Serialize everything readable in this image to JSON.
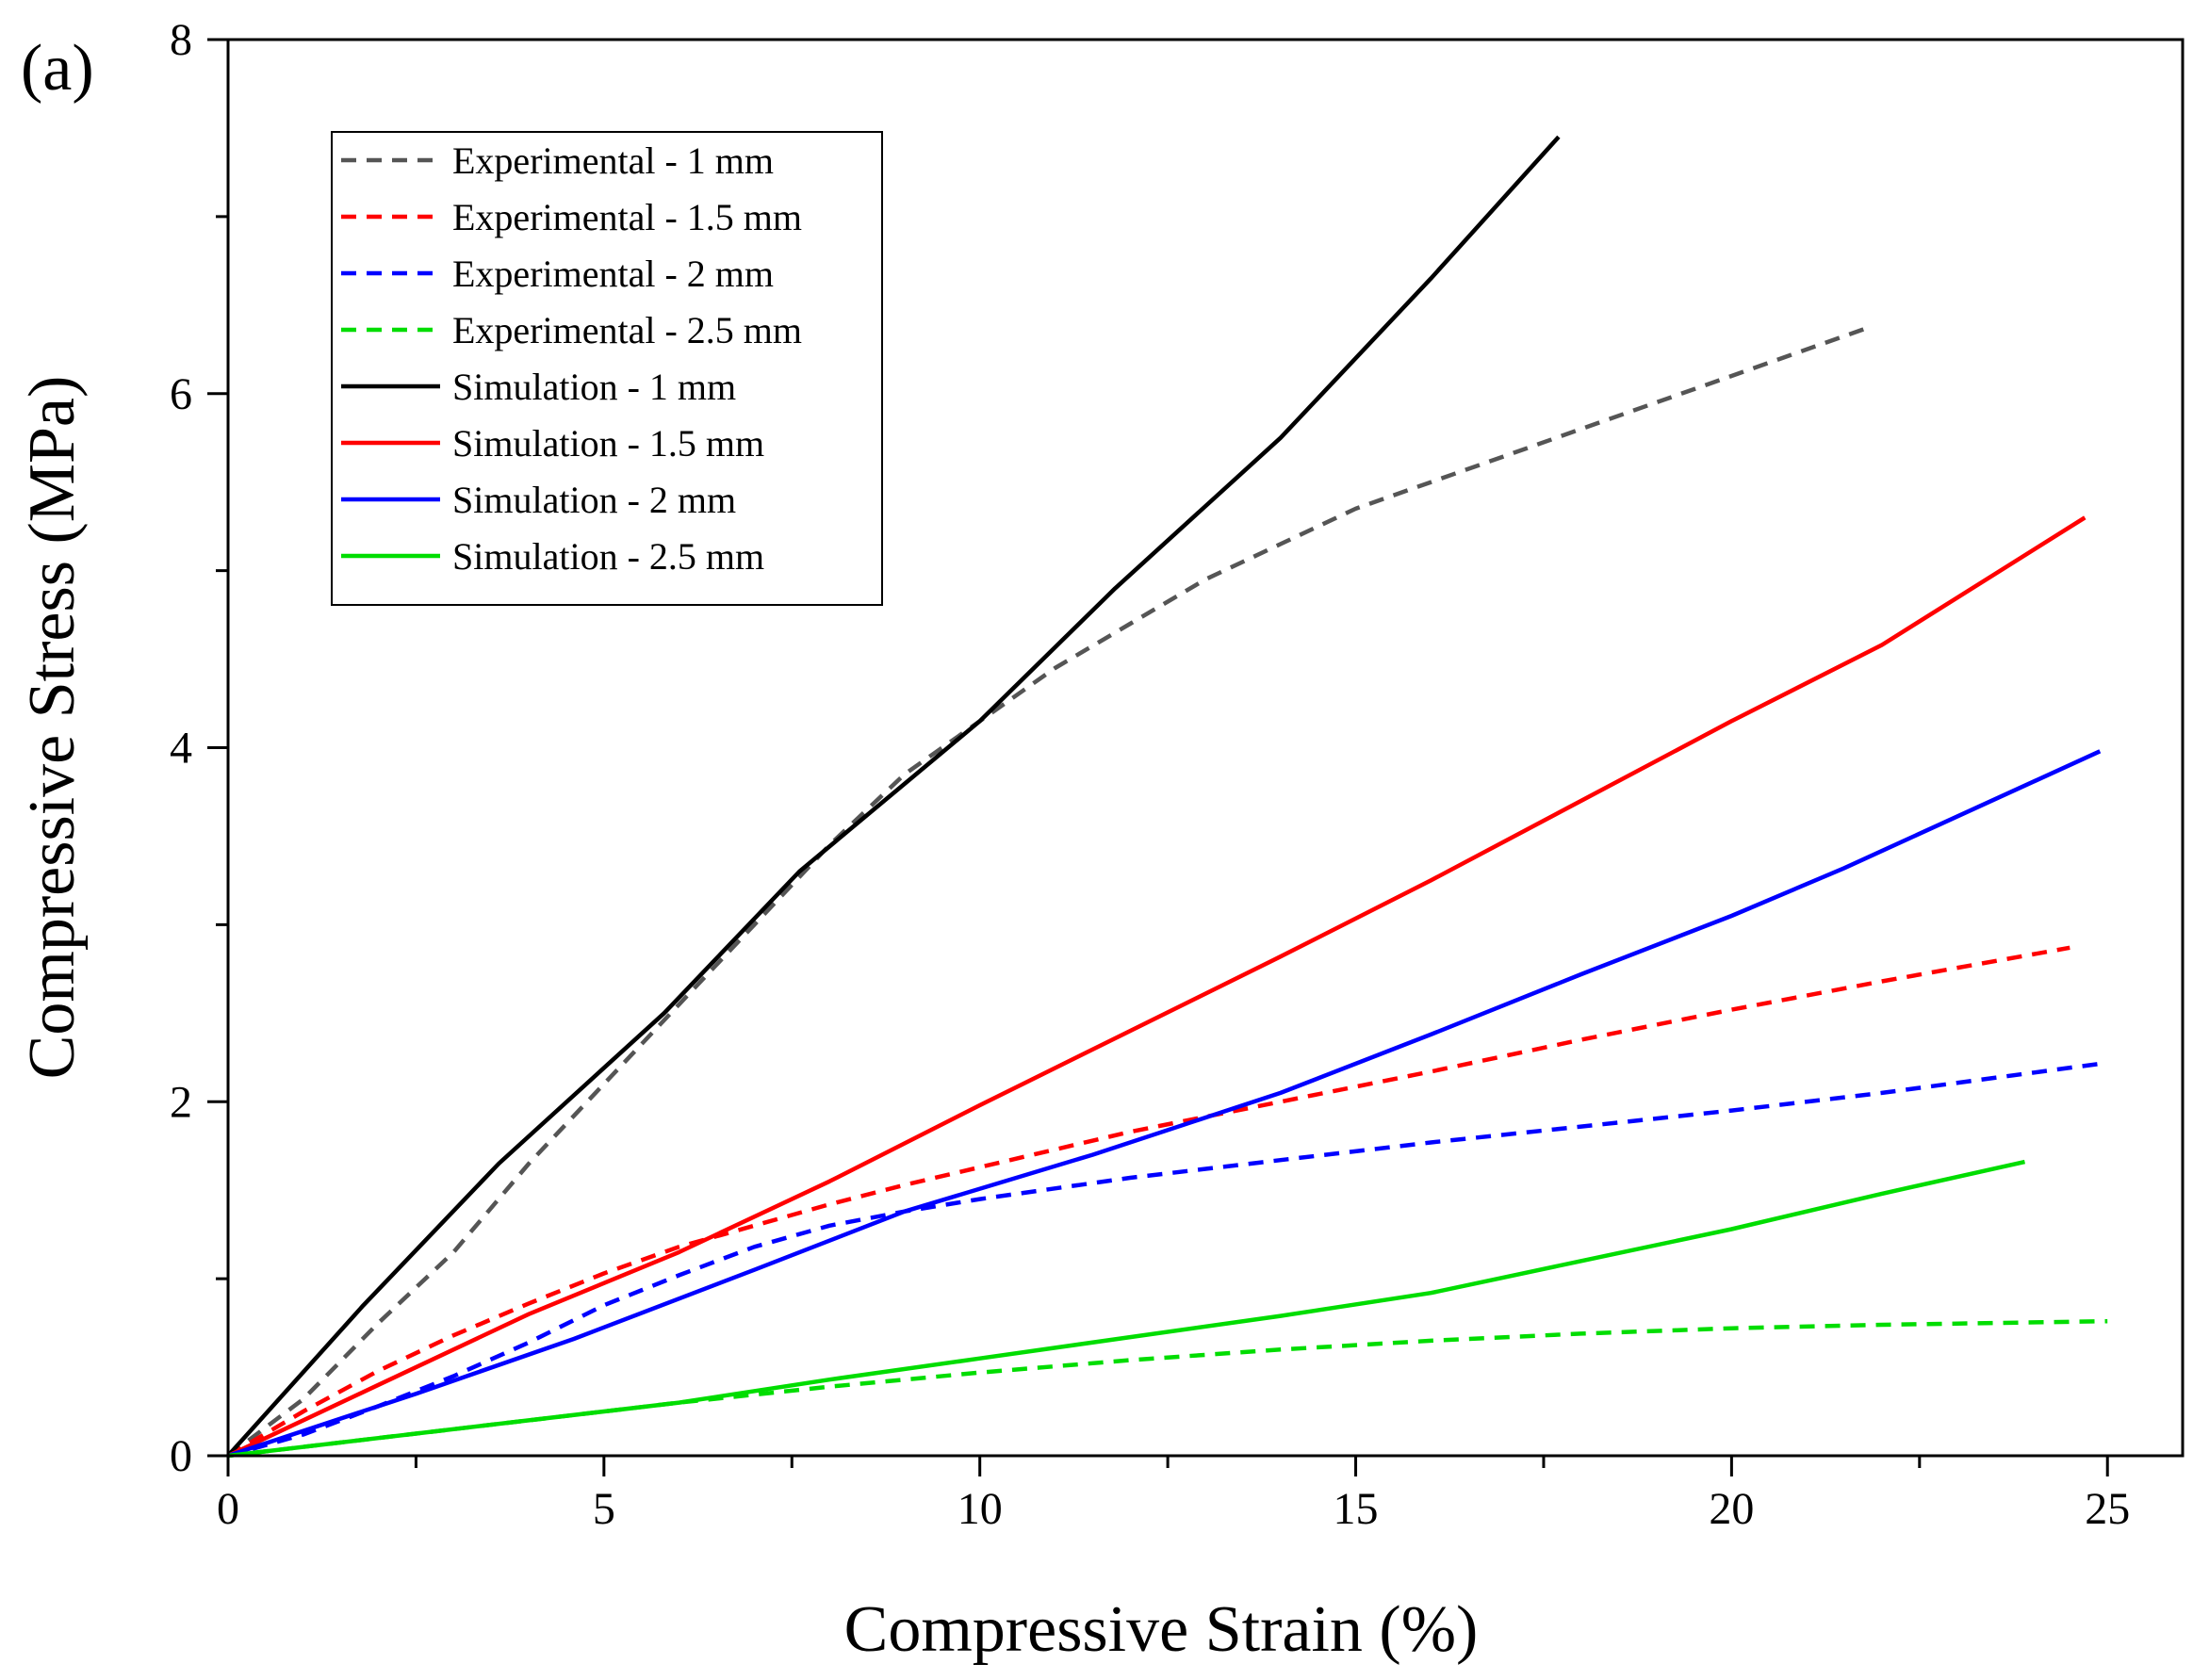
{
  "panel_label": "(a)",
  "chart_data": {
    "type": "line",
    "title": "",
    "xlabel": "Compressive Strain (%)",
    "ylabel": "Compressive Stress (MPa)",
    "xlim": [
      0,
      26
    ],
    "ylim": [
      0,
      8
    ],
    "x_ticks": [
      0,
      5,
      10,
      15,
      20,
      25
    ],
    "y_ticks": [
      0,
      2,
      4,
      6,
      8
    ],
    "grid": false,
    "legend_position": "top-left",
    "series": [
      {
        "name": "Experimental - 1 mm",
        "style": "dashed",
        "color": "#555555",
        "x": [
          0,
          1,
          2,
          3,
          4,
          5,
          6,
          7,
          8,
          9,
          10,
          11,
          12,
          13,
          14,
          15,
          16,
          17,
          18,
          19,
          20,
          21,
          21.8
        ],
        "y": [
          0,
          0.32,
          0.75,
          1.15,
          1.65,
          2.1,
          2.55,
          3.0,
          3.45,
          3.85,
          4.15,
          4.45,
          4.7,
          4.95,
          5.15,
          5.35,
          5.5,
          5.65,
          5.8,
          5.95,
          6.1,
          6.25,
          6.37
        ]
      },
      {
        "name": "Experimental - 1.5 mm",
        "style": "dashed",
        "color": "#ff0000",
        "x": [
          0,
          1,
          2,
          3,
          4,
          5,
          6,
          7,
          8,
          9,
          10,
          12,
          14,
          16,
          18,
          20,
          22,
          24.5
        ],
        "y": [
          0,
          0.25,
          0.48,
          0.68,
          0.86,
          1.03,
          1.18,
          1.3,
          1.42,
          1.53,
          1.63,
          1.83,
          2.0,
          2.17,
          2.35,
          2.52,
          2.68,
          2.87
        ]
      },
      {
        "name": "Experimental - 2 mm",
        "style": "dashed",
        "color": "#0000ff",
        "x": [
          0,
          1,
          2,
          3,
          4,
          5,
          6,
          7,
          8,
          9,
          10,
          12,
          14,
          16,
          18,
          20,
          22,
          25
        ],
        "y": [
          0,
          0.12,
          0.28,
          0.45,
          0.64,
          0.85,
          1.02,
          1.18,
          1.3,
          1.38,
          1.45,
          1.57,
          1.67,
          1.77,
          1.86,
          1.95,
          2.05,
          2.22
        ]
      },
      {
        "name": "Experimental - 2.5 mm",
        "style": "dashed",
        "color": "#00dd00",
        "x": [
          0,
          2,
          4,
          6,
          8,
          10,
          12,
          14,
          16,
          18,
          20,
          22,
          25
        ],
        "y": [
          0,
          0.1,
          0.2,
          0.3,
          0.39,
          0.47,
          0.54,
          0.6,
          0.65,
          0.69,
          0.72,
          0.74,
          0.76
        ]
      },
      {
        "name": "Simulation - 1 mm",
        "style": "solid",
        "color": "#000000",
        "x": [
          0,
          1.8,
          3.6,
          5.8,
          7.6,
          10,
          11.8,
          14,
          16,
          17.7
        ],
        "y": [
          0,
          0.85,
          1.65,
          2.5,
          3.3,
          4.15,
          4.9,
          5.75,
          6.65,
          7.45
        ]
      },
      {
        "name": "Simulation - 1.5 mm",
        "style": "solid",
        "color": "#ff0000",
        "x": [
          0,
          2,
          4,
          6,
          8,
          10,
          12,
          14,
          16,
          18,
          20,
          22,
          24.7
        ],
        "y": [
          0,
          0.4,
          0.8,
          1.15,
          1.55,
          1.98,
          2.4,
          2.82,
          3.25,
          3.7,
          4.15,
          4.58,
          5.3
        ]
      },
      {
        "name": "Simulation - 2 mm",
        "style": "solid",
        "color": "#0000ff",
        "x": [
          0,
          2.5,
          4.6,
          7,
          9,
          11.5,
          14,
          16,
          18,
          20,
          21.5,
          24.9
        ],
        "y": [
          0,
          0.35,
          0.66,
          1.05,
          1.38,
          1.7,
          2.05,
          2.38,
          2.72,
          3.05,
          3.32,
          3.98
        ]
      },
      {
        "name": "Simulation - 2.5 mm",
        "style": "solid",
        "color": "#00dd00",
        "x": [
          0,
          2,
          4,
          6,
          8,
          10,
          12,
          14,
          16,
          18,
          20,
          22,
          23.9
        ],
        "y": [
          0,
          0.1,
          0.2,
          0.3,
          0.43,
          0.55,
          0.67,
          0.79,
          0.92,
          1.1,
          1.28,
          1.48,
          1.66
        ]
      }
    ]
  }
}
